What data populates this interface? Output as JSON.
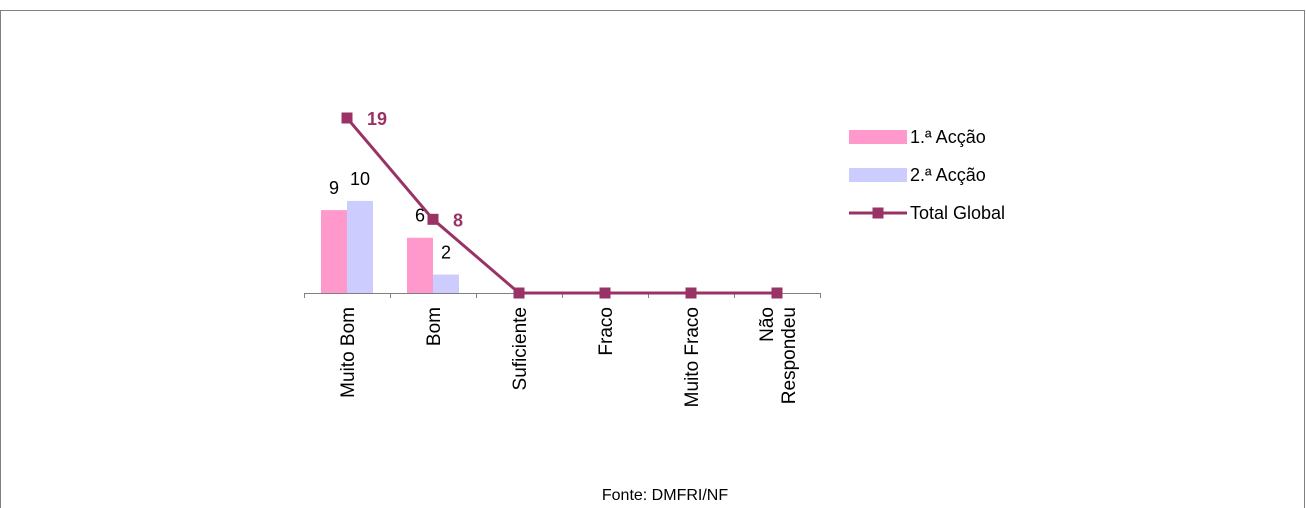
{
  "chart_data": {
    "type": "bar",
    "title": "",
    "categories": [
      "Muito Bom",
      "Bom",
      "Suficiente",
      "Fraco",
      "Muito Fraco",
      "Não Respondeu"
    ],
    "category_label_lines": [
      [
        "Muito Bom"
      ],
      [
        "Bom"
      ],
      [
        "Suficiente"
      ],
      [
        "Fraco"
      ],
      [
        "Muito Fraco"
      ],
      [
        "Não",
        "Respondeu"
      ]
    ],
    "series": [
      {
        "name": "1.ª Acção",
        "kind": "bar",
        "color": "#FF99CC",
        "values": [
          9,
          6,
          0,
          0,
          0,
          0
        ],
        "data_labels": [
          "9",
          "6",
          "",
          "",
          "",
          ""
        ]
      },
      {
        "name": "2.ª Acção",
        "kind": "bar",
        "color": "#CCCCFF",
        "values": [
          10,
          2,
          0,
          0,
          0,
          0
        ],
        "data_labels": [
          "10",
          "2",
          "",
          "",
          "",
          ""
        ]
      },
      {
        "name": "Total Global",
        "kind": "line",
        "color": "#993366",
        "values": [
          19,
          8,
          0,
          0,
          0,
          0
        ],
        "data_labels": [
          "19",
          "8",
          "",
          "",
          "",
          ""
        ]
      }
    ],
    "ylim": [
      0,
      19
    ],
    "legend_position": "right",
    "grid": false,
    "source_note": "Fonte: DMFRI/NF"
  },
  "colors": {
    "frame": "#808080",
    "axis": "#808080",
    "text": "#000000",
    "line_label": "#993366"
  }
}
